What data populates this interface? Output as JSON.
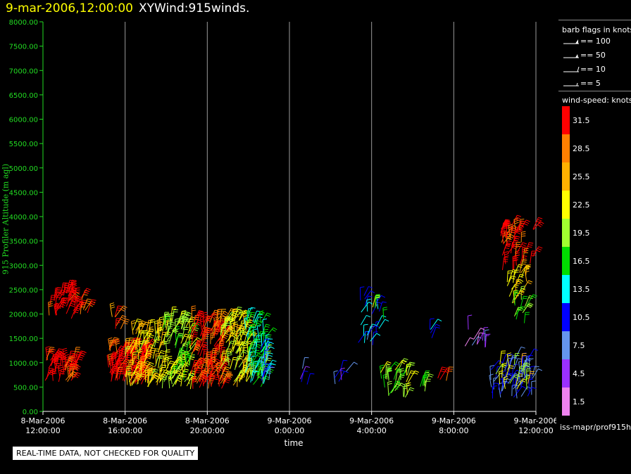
{
  "header": {
    "timestamp": "9-mar-2006,12:00:00",
    "plot_name": "XYWind:915winds."
  },
  "legend": {
    "flags_title": "barb flags in knots",
    "flags": [
      {
        "icon": "barb-100-icon",
        "label": "== 100"
      },
      {
        "icon": "barb-50-icon",
        "label": "== 50"
      },
      {
        "icon": "barb-10-icon",
        "label": "== 10"
      },
      {
        "icon": "barb-5-icon",
        "label": "== 5"
      }
    ],
    "speed_title": "wind-speed: knots",
    "speed_bins": [
      {
        "label": "31.5",
        "color": "#ff0000"
      },
      {
        "label": "28.5",
        "color": "#ff7f00"
      },
      {
        "label": "25.5",
        "color": "#ffb000"
      },
      {
        "label": "22.5",
        "color": "#ffff00"
      },
      {
        "label": "19.5",
        "color": "#a0ff30"
      },
      {
        "label": "16.5",
        "color": "#00dd00"
      },
      {
        "label": "13.5",
        "color": "#00ffff"
      },
      {
        "label": "10.5",
        "color": "#0000ff"
      },
      {
        "label": "7.5",
        "color": "#6495ed"
      },
      {
        "label": "4.5",
        "color": "#9b30ff"
      },
      {
        "label": "1.5",
        "color": "#ee82ee"
      }
    ]
  },
  "footer": {
    "source": "iss-mapr/prof915h"
  },
  "notice": "REAL-TIME DATA, NOT CHECKED FOR QUALITY",
  "chart_data": {
    "type": "scatter",
    "title": "9-mar-2006,12:00:00  XYWind:915winds.",
    "xlabel": "time",
    "ylabel": "915 Profiler Altitude (m agl)",
    "ylim": [
      0,
      8000
    ],
    "xlim_hours": [
      0,
      24
    ],
    "y_ticks": [
      "0.00",
      "500.00",
      "1000.00",
      "1500.00",
      "2000.00",
      "2500.00",
      "3000.00",
      "3500.00",
      "4000.00",
      "4500.00",
      "5000.00",
      "5500.00",
      "6000.00",
      "6500.00",
      "7000.00",
      "7500.00",
      "8000.00"
    ],
    "x_ticks": [
      {
        "hour": 0,
        "date": "8-Mar-2006",
        "time": "12:00:00"
      },
      {
        "hour": 4,
        "date": "8-Mar-2006",
        "time": "16:00:00"
      },
      {
        "hour": 8,
        "date": "8-Mar-2006",
        "time": "20:00:00"
      },
      {
        "hour": 12,
        "date": "9-Mar-2006",
        "time": "0:00:00"
      },
      {
        "hour": 16,
        "date": "9-Mar-2006",
        "time": "4:00:00"
      },
      {
        "hour": 20,
        "date": "9-Mar-2006",
        "time": "8:00:00"
      },
      {
        "hour": 24,
        "date": "9-Mar-2006",
        "time": "12:00:00"
      }
    ],
    "barb_clusters": [
      {
        "t0": 0.1,
        "t1": 2.2,
        "h0": 1900,
        "h1": 2450,
        "speed": 32,
        "n": 40
      },
      {
        "t0": 0.1,
        "t1": 1.6,
        "h0": 580,
        "h1": 1100,
        "speed": 32,
        "n": 45
      },
      {
        "t0": 3.3,
        "t1": 3.8,
        "h0": 1650,
        "h1": 2000,
        "speed": 28,
        "n": 6
      },
      {
        "t0": 3.2,
        "t1": 5.0,
        "h0": 550,
        "h1": 1300,
        "speed": 32,
        "n": 90
      },
      {
        "t0": 4.0,
        "t1": 5.8,
        "h0": 500,
        "h1": 1700,
        "speed": 23,
        "n": 90
      },
      {
        "t0": 5.8,
        "t1": 7.2,
        "h0": 450,
        "h1": 1900,
        "speed": 20,
        "n": 90
      },
      {
        "t0": 7.2,
        "t1": 8.8,
        "h0": 450,
        "h1": 1900,
        "speed": 30,
        "n": 110
      },
      {
        "t0": 8.6,
        "t1": 10.0,
        "h0": 500,
        "h1": 1900,
        "speed": 22,
        "n": 90
      },
      {
        "t0": 9.8,
        "t1": 10.9,
        "h0": 500,
        "h1": 1900,
        "speed": 16,
        "n": 80
      },
      {
        "t0": 10.5,
        "t1": 11.0,
        "h0": 500,
        "h1": 1300,
        "speed": 10,
        "n": 12
      },
      {
        "t0": 12.5,
        "t1": 12.9,
        "h0": 500,
        "h1": 950,
        "speed": 8,
        "n": 4
      },
      {
        "t0": 14.2,
        "t1": 14.8,
        "h0": 350,
        "h1": 850,
        "speed": 8,
        "n": 6
      },
      {
        "t0": 15.3,
        "t1": 16.4,
        "h0": 1300,
        "h1": 2600,
        "speed": 11,
        "n": 22
      },
      {
        "t0": 16.0,
        "t1": 16.8,
        "h0": 1900,
        "h1": 2200,
        "speed": 19,
        "n": 4
      },
      {
        "t0": 16.4,
        "t1": 17.8,
        "h0": 250,
        "h1": 850,
        "speed": 19,
        "n": 30
      },
      {
        "t0": 18.1,
        "t1": 18.6,
        "h0": 300,
        "h1": 700,
        "speed": 19,
        "n": 6
      },
      {
        "t0": 18.6,
        "t1": 19.1,
        "h0": 1500,
        "h1": 1750,
        "speed": 13,
        "n": 4
      },
      {
        "t0": 19.2,
        "t1": 19.7,
        "h0": 550,
        "h1": 750,
        "speed": 28,
        "n": 3
      },
      {
        "t0": 20.5,
        "t1": 21.6,
        "h0": 1300,
        "h1": 1700,
        "speed": 4,
        "n": 10
      },
      {
        "t0": 22.2,
        "t1": 23.9,
        "h0": 2900,
        "h1": 3800,
        "speed": 32,
        "n": 45
      },
      {
        "t0": 22.6,
        "t1": 23.6,
        "h0": 2200,
        "h1": 2900,
        "speed": 23,
        "n": 20
      },
      {
        "t0": 22.8,
        "t1": 23.6,
        "h0": 1800,
        "h1": 2200,
        "speed": 18,
        "n": 10
      },
      {
        "t0": 21.8,
        "t1": 23.9,
        "h0": 250,
        "h1": 1100,
        "speed": 9,
        "n": 60
      },
      {
        "t0": 21.9,
        "t1": 23.8,
        "h0": 400,
        "h1": 1000,
        "speed": 22,
        "n": 18
      }
    ]
  }
}
